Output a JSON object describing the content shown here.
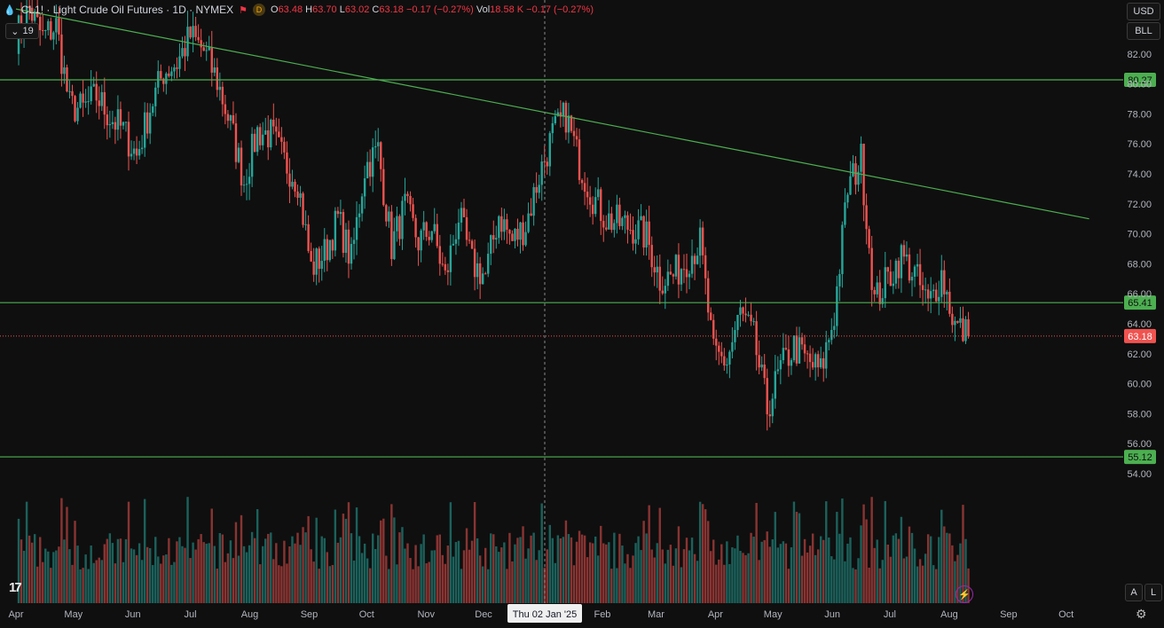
{
  "header": {
    "symbol": "CL1! · Light Crude Oil Futures · 1D · NYMEX",
    "badge": "D",
    "o_label": "O",
    "o": "63.48",
    "h_label": "H",
    "h": "63.70",
    "l_label": "L",
    "l": "63.02",
    "c_label": "C",
    "c": "63.18",
    "change": "−0.17 (−0.27%)",
    "vol_label": "Vol",
    "vol": "18.58 K",
    "vol_change": "−0.17 (−0.27%)"
  },
  "indicator_count": "19",
  "currency_button": "USD",
  "unit_button": "BLL",
  "corner_buttons": {
    "auto": "A",
    "log": "L"
  },
  "crosshair_date": "Thu 02 Jan '25",
  "colors": {
    "up": "#26a69a",
    "down": "#ef5350",
    "hline": "#4caf50",
    "bg": "#0f0f0f"
  },
  "icons": [
    "drop-icon",
    "flag-icon",
    "chevron-down-icon",
    "tradingview-logo",
    "lightning-icon",
    "gear-icon"
  ],
  "chart_data": {
    "type": "candlestick",
    "x_ticks": [
      "Apr",
      "May",
      "Jun",
      "Jul",
      "Aug",
      "Sep",
      "Oct",
      "Nov",
      "Dec",
      "Feb",
      "Mar",
      "Apr",
      "May",
      "Jun",
      "Jul",
      "Aug",
      "Sep",
      "Oct"
    ],
    "y_ticks": [
      "54.00",
      "56.00",
      "58.00",
      "60.00",
      "62.00",
      "64.00",
      "66.00",
      "68.00",
      "70.00",
      "72.00",
      "74.00",
      "76.00",
      "78.00",
      "80.00",
      "82.00"
    ],
    "ylim": [
      47,
      84
    ],
    "horizontal_lines": [
      {
        "label": "80.27",
        "value": 80.27
      },
      {
        "label": "65.41",
        "value": 65.41
      },
      {
        "label": "55.12",
        "value": 55.12
      }
    ],
    "last_price": {
      "label": "63.18",
      "value": 63.18
    },
    "trendline": {
      "from": {
        "date": "2024-04-01",
        "value": 85.0
      },
      "to": {
        "date": "2025-10-13",
        "value": 71.0
      }
    },
    "closes_weekly": [
      {
        "date": "2024-04-01",
        "close": 83.2
      },
      {
        "date": "2024-04-08",
        "close": 85.0
      },
      {
        "date": "2024-04-15",
        "close": 83.1
      },
      {
        "date": "2024-04-22",
        "close": 83.9
      },
      {
        "date": "2024-04-29",
        "close": 78.5
      },
      {
        "date": "2024-05-06",
        "close": 78.3
      },
      {
        "date": "2024-05-13",
        "close": 79.2
      },
      {
        "date": "2024-05-20",
        "close": 77.8
      },
      {
        "date": "2024-05-27",
        "close": 76.9
      },
      {
        "date": "2024-06-03",
        "close": 75.2
      },
      {
        "date": "2024-06-10",
        "close": 78.4
      },
      {
        "date": "2024-06-17",
        "close": 80.8
      },
      {
        "date": "2024-06-24",
        "close": 81.4
      },
      {
        "date": "2024-07-01",
        "close": 83.2
      },
      {
        "date": "2024-07-08",
        "close": 82.2
      },
      {
        "date": "2024-07-15",
        "close": 80.2
      },
      {
        "date": "2024-07-22",
        "close": 77.2
      },
      {
        "date": "2024-07-29",
        "close": 73.5
      },
      {
        "date": "2024-08-05",
        "close": 76.8
      },
      {
        "date": "2024-08-12",
        "close": 76.6
      },
      {
        "date": "2024-08-19",
        "close": 74.8
      },
      {
        "date": "2024-08-26",
        "close": 73.6
      },
      {
        "date": "2024-09-02",
        "close": 67.7
      },
      {
        "date": "2024-09-09",
        "close": 68.7
      },
      {
        "date": "2024-09-16",
        "close": 71.0
      },
      {
        "date": "2024-09-23",
        "close": 68.2
      },
      {
        "date": "2024-09-30",
        "close": 74.4
      },
      {
        "date": "2024-10-07",
        "close": 75.6
      },
      {
        "date": "2024-10-14",
        "close": 69.2
      },
      {
        "date": "2024-10-21",
        "close": 71.8
      },
      {
        "date": "2024-10-28",
        "close": 69.5
      },
      {
        "date": "2024-11-04",
        "close": 70.4
      },
      {
        "date": "2024-11-11",
        "close": 67.0
      },
      {
        "date": "2024-11-18",
        "close": 71.2
      },
      {
        "date": "2024-11-25",
        "close": 68.0
      },
      {
        "date": "2024-12-02",
        "close": 67.2
      },
      {
        "date": "2024-12-09",
        "close": 71.3
      },
      {
        "date": "2024-12-16",
        "close": 69.5
      },
      {
        "date": "2024-12-23",
        "close": 70.6
      },
      {
        "date": "2024-12-30",
        "close": 73.9
      },
      {
        "date": "2025-01-06",
        "close": 76.6
      },
      {
        "date": "2025-01-13",
        "close": 77.9
      },
      {
        "date": "2025-01-20",
        "close": 74.7
      },
      {
        "date": "2025-01-27",
        "close": 72.5
      },
      {
        "date": "2025-02-03",
        "close": 71.0
      },
      {
        "date": "2025-02-10",
        "close": 70.7
      },
      {
        "date": "2025-02-17",
        "close": 70.4
      },
      {
        "date": "2025-02-24",
        "close": 69.8
      },
      {
        "date": "2025-03-03",
        "close": 67.0
      },
      {
        "date": "2025-03-10",
        "close": 67.2
      },
      {
        "date": "2025-03-17",
        "close": 68.3
      },
      {
        "date": "2025-03-24",
        "close": 69.4
      },
      {
        "date": "2025-03-31",
        "close": 61.9
      },
      {
        "date": "2025-04-07",
        "close": 61.5
      },
      {
        "date": "2025-04-14",
        "close": 64.7
      },
      {
        "date": "2025-04-21",
        "close": 63.0
      },
      {
        "date": "2025-04-28",
        "close": 58.3
      },
      {
        "date": "2025-05-05",
        "close": 61.0
      },
      {
        "date": "2025-05-12",
        "close": 62.5
      },
      {
        "date": "2025-05-19",
        "close": 61.5
      },
      {
        "date": "2025-05-26",
        "close": 60.8
      },
      {
        "date": "2025-06-02",
        "close": 64.6
      },
      {
        "date": "2025-06-09",
        "close": 73.0
      },
      {
        "date": "2025-06-16",
        "close": 75.0
      },
      {
        "date": "2025-06-23",
        "close": 65.5
      },
      {
        "date": "2025-06-30",
        "close": 67.0
      },
      {
        "date": "2025-07-07",
        "close": 68.5
      },
      {
        "date": "2025-07-14",
        "close": 67.3
      },
      {
        "date": "2025-07-21",
        "close": 65.2
      },
      {
        "date": "2025-07-28",
        "close": 67.3
      },
      {
        "date": "2025-08-04",
        "close": 63.9
      },
      {
        "date": "2025-08-11",
        "close": 63.18
      }
    ]
  }
}
